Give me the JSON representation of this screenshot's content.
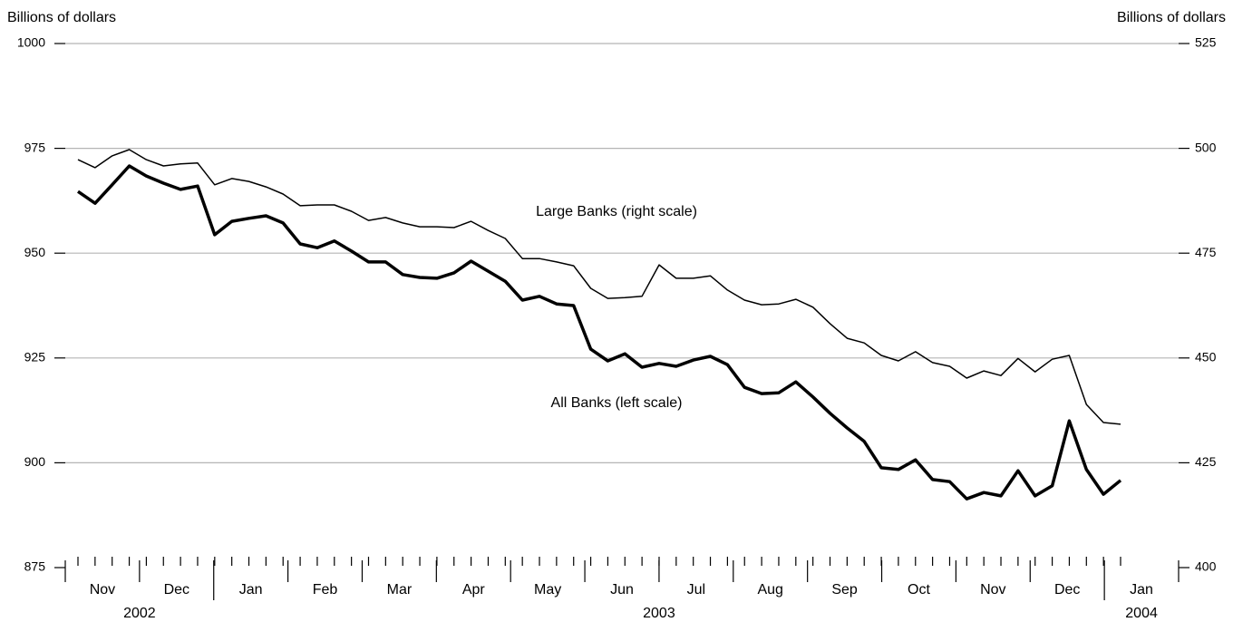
{
  "chart_data": {
    "type": "line",
    "y_label": "Billions of dollars",
    "y2_label": "Billions of dollars",
    "ylim": [
      875,
      1000
    ],
    "yticks": [
      875,
      900,
      925,
      950,
      975,
      1000
    ],
    "y2lim": [
      400,
      525
    ],
    "y2ticks": [
      400,
      425,
      450,
      475,
      500,
      525
    ],
    "grid": true,
    "years": [
      {
        "label": "2002",
        "months": [
          "Nov",
          "Dec"
        ]
      },
      {
        "label": "2003",
        "months": [
          "Jan",
          "Feb",
          "Mar",
          "Apr",
          "May",
          "Jun",
          "Jul",
          "Aug",
          "Sep",
          "Oct",
          "Nov",
          "Dec"
        ]
      },
      {
        "label": "2004",
        "months": [
          "Jan"
        ]
      }
    ],
    "series": [
      {
        "name": "All Banks (left scale)",
        "color": "#000000",
        "line_width": 3.5,
        "values": [
          964.7,
          961.9,
          966.3,
          970.8,
          968.4,
          966.7,
          965.2,
          966.0,
          954.4,
          957.6,
          958.3,
          958.9,
          957.2,
          952.2,
          951.3,
          952.9,
          950.5,
          947.9,
          947.9,
          944.9,
          944.2,
          944.0,
          945.3,
          948.1,
          945.7,
          943.3,
          938.8,
          939.7,
          937.9,
          937.5,
          927.1,
          924.3,
          926.0,
          922.8,
          923.7,
          923.0,
          924.5,
          925.4,
          923.4,
          918.0,
          916.5,
          916.7,
          919.3,
          915.7,
          911.8,
          908.3,
          905.1,
          898.8,
          898.4,
          900.7,
          896.0,
          895.5,
          891.4,
          892.9,
          892.1,
          898.1,
          892.1,
          894.5,
          910.0,
          898.4,
          892.5,
          895.8
        ]
      },
      {
        "name": "Large Banks (right scale)",
        "color": "#000000",
        "line_width": 1.5,
        "axis": "y2",
        "values": [
          497.3,
          495.4,
          498.2,
          499.7,
          497.3,
          495.8,
          496.3,
          496.5,
          491.3,
          492.8,
          492.1,
          490.8,
          489.1,
          486.3,
          486.5,
          486.5,
          485.0,
          482.8,
          483.5,
          482.2,
          481.3,
          481.3,
          481.1,
          482.6,
          480.4,
          478.5,
          473.7,
          473.7,
          472.9,
          472.0,
          466.6,
          464.2,
          464.4,
          464.7,
          472.2,
          469.0,
          469.0,
          469.6,
          466.2,
          463.8,
          462.7,
          462.9,
          464.0,
          462.1,
          458.2,
          454.7,
          453.6,
          450.6,
          449.3,
          451.5,
          448.9,
          448.0,
          445.2,
          446.9,
          445.8,
          449.9,
          446.7,
          449.7,
          450.6,
          438.9,
          434.6,
          434.2
        ]
      }
    ]
  }
}
